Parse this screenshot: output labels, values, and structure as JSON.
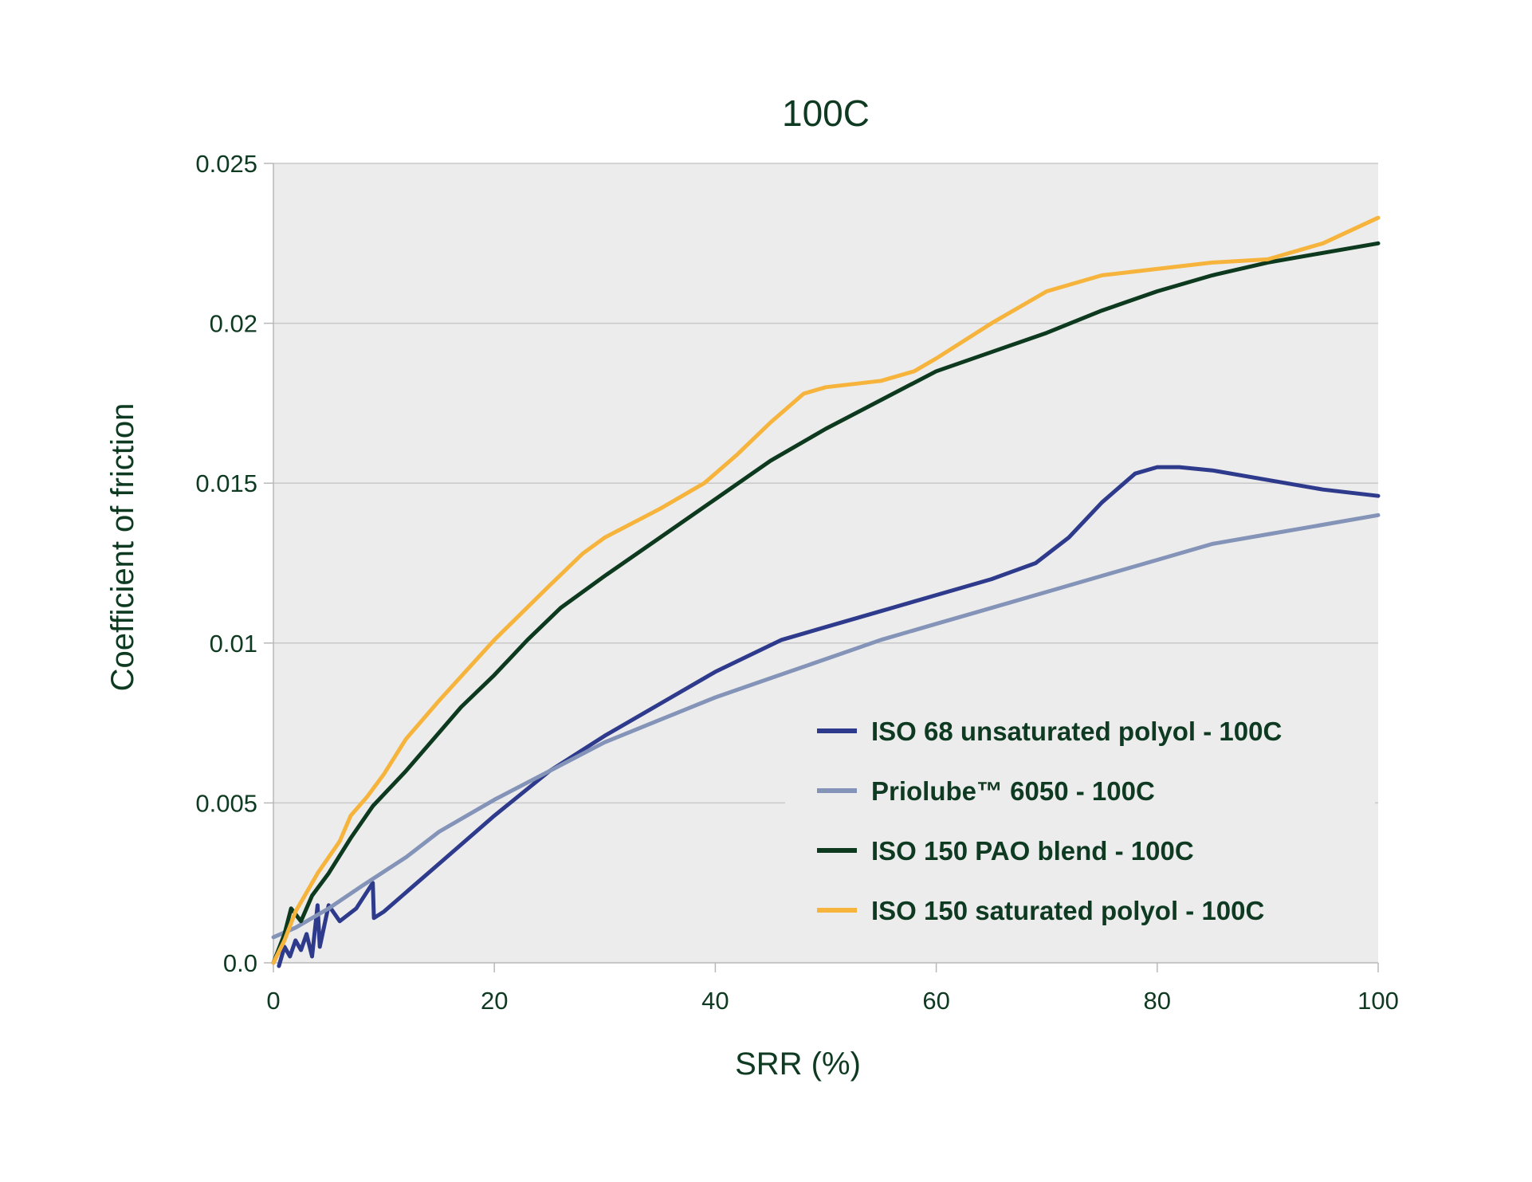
{
  "chart_data": {
    "type": "line",
    "title": "100C",
    "xlabel": "SRR (%)",
    "ylabel": "Coefficient of friction",
    "xlim": [
      0,
      100
    ],
    "ylim": [
      0,
      0.025
    ],
    "xticks": [
      "0",
      "20",
      "40",
      "60",
      "80",
      "100"
    ],
    "xtick_values": [
      0,
      20,
      40,
      60,
      80,
      100
    ],
    "yticks": [
      "0.0",
      "0.005",
      "0.01",
      "0.015",
      "0.02",
      "0.025"
    ],
    "ytick_values": [
      0,
      0.005,
      0.01,
      0.015,
      0.02,
      0.025
    ],
    "grid": "horizontal",
    "legend_position": "bottom-right",
    "plot_background": "#ececec",
    "series": [
      {
        "name": "ISO 68 unsaturated  polyol - 100C",
        "color": "#2e3a8c",
        "points": [
          [
            0.5,
            -0.0001
          ],
          [
            1,
            0.0005
          ],
          [
            1.5,
            0.0002
          ],
          [
            2,
            0.0007
          ],
          [
            2.5,
            0.0004
          ],
          [
            3,
            0.0009
          ],
          [
            3.5,
            0.0002
          ],
          [
            4,
            0.0018
          ],
          [
            4.2,
            0.0005
          ],
          [
            5,
            0.0018
          ],
          [
            6,
            0.0013
          ],
          [
            7.5,
            0.0017
          ],
          [
            9,
            0.0025
          ],
          [
            9.1,
            0.0014
          ],
          [
            10,
            0.0016
          ],
          [
            12,
            0.0022
          ],
          [
            15,
            0.0031
          ],
          [
            18,
            0.004
          ],
          [
            20,
            0.0046
          ],
          [
            25,
            0.006
          ],
          [
            30,
            0.0071
          ],
          [
            35,
            0.0081
          ],
          [
            40,
            0.0091
          ],
          [
            46,
            0.0101
          ],
          [
            50,
            0.0105
          ],
          [
            55,
            0.011
          ],
          [
            60,
            0.0115
          ],
          [
            65,
            0.012
          ],
          [
            69,
            0.0125
          ],
          [
            72,
            0.0133
          ],
          [
            75,
            0.0144
          ],
          [
            78,
            0.0153
          ],
          [
            80,
            0.0155
          ],
          [
            82,
            0.0155
          ],
          [
            85,
            0.0154
          ],
          [
            90,
            0.0151
          ],
          [
            95,
            0.0148
          ],
          [
            100,
            0.0146
          ]
        ]
      },
      {
        "name": "Priolube™ 6050 - 100C",
        "color": "#8493b8",
        "points": [
          [
            0,
            0.0008
          ],
          [
            2,
            0.0011
          ],
          [
            5,
            0.0017
          ],
          [
            8,
            0.0024
          ],
          [
            12,
            0.0033
          ],
          [
            15,
            0.0041
          ],
          [
            20,
            0.0051
          ],
          [
            25,
            0.006
          ],
          [
            30,
            0.0069
          ],
          [
            35,
            0.0076
          ],
          [
            40,
            0.0083
          ],
          [
            45,
            0.0089
          ],
          [
            50,
            0.0095
          ],
          [
            55,
            0.0101
          ],
          [
            60,
            0.0106
          ],
          [
            65,
            0.0111
          ],
          [
            70,
            0.0116
          ],
          [
            75,
            0.0121
          ],
          [
            80,
            0.0126
          ],
          [
            85,
            0.0131
          ],
          [
            90,
            0.0134
          ],
          [
            95,
            0.0137
          ],
          [
            100,
            0.014
          ]
        ]
      },
      {
        "name": "ISO 150 PAO blend - 100C",
        "color": "#0d3a1f",
        "points": [
          [
            0,
            0
          ],
          [
            1,
            0.0009
          ],
          [
            1.6,
            0.0017
          ],
          [
            2.5,
            0.0013
          ],
          [
            3.5,
            0.0021
          ],
          [
            5,
            0.0028
          ],
          [
            7,
            0.0039
          ],
          [
            9,
            0.0049
          ],
          [
            12,
            0.006
          ],
          [
            15,
            0.0072
          ],
          [
            17,
            0.008
          ],
          [
            20,
            0.009
          ],
          [
            23,
            0.0101
          ],
          [
            26,
            0.0111
          ],
          [
            30,
            0.0121
          ],
          [
            35,
            0.0133
          ],
          [
            40,
            0.0145
          ],
          [
            45,
            0.0157
          ],
          [
            50,
            0.0167
          ],
          [
            55,
            0.0176
          ],
          [
            60,
            0.0185
          ],
          [
            65,
            0.0191
          ],
          [
            70,
            0.0197
          ],
          [
            75,
            0.0204
          ],
          [
            80,
            0.021
          ],
          [
            85,
            0.0215
          ],
          [
            90,
            0.0219
          ],
          [
            95,
            0.0222
          ],
          [
            100,
            0.0225
          ]
        ]
      },
      {
        "name": "ISO 150 saturated polyol - 100C",
        "color": "#f6b43c",
        "points": [
          [
            0,
            0
          ],
          [
            1,
            0.0007
          ],
          [
            2,
            0.0016
          ],
          [
            3,
            0.0022
          ],
          [
            4,
            0.0028
          ],
          [
            5,
            0.0033
          ],
          [
            6,
            0.0038
          ],
          [
            7,
            0.0046
          ],
          [
            8.5,
            0.0052
          ],
          [
            10,
            0.0059
          ],
          [
            12,
            0.007
          ],
          [
            15,
            0.0082
          ],
          [
            20,
            0.0101
          ],
          [
            25,
            0.0118
          ],
          [
            28,
            0.0128
          ],
          [
            30,
            0.0133
          ],
          [
            35,
            0.0142
          ],
          [
            39,
            0.015
          ],
          [
            42,
            0.0159
          ],
          [
            45,
            0.0169
          ],
          [
            48,
            0.0178
          ],
          [
            50,
            0.018
          ],
          [
            55,
            0.0182
          ],
          [
            58,
            0.0185
          ],
          [
            60,
            0.0189
          ],
          [
            65,
            0.02
          ],
          [
            70,
            0.021
          ],
          [
            75,
            0.0215
          ],
          [
            80,
            0.0217
          ],
          [
            85,
            0.0219
          ],
          [
            90,
            0.022
          ],
          [
            95,
            0.0225
          ],
          [
            100,
            0.0233
          ]
        ]
      }
    ]
  }
}
